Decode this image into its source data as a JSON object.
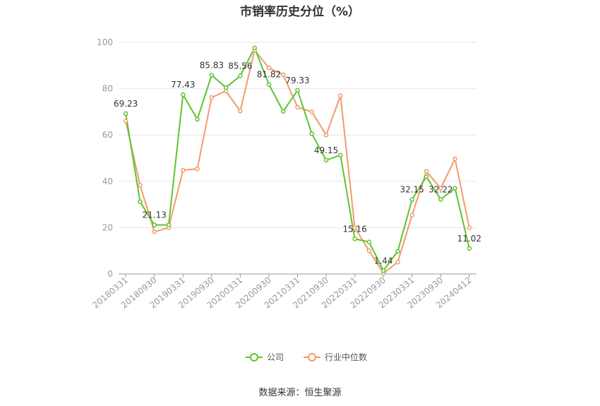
{
  "chart_data": {
    "type": "line",
    "title": "市销率历史分位（%）",
    "source": "数据来源：恒生聚源",
    "ylim": [
      0,
      100
    ],
    "yticks": [
      0,
      20,
      40,
      60,
      80,
      100
    ],
    "grid": true,
    "legend_position": "bottom",
    "xtick_labels": [
      "20180331",
      "20180930",
      "20190331",
      "20190930",
      "20200331",
      "20200930",
      "20210331",
      "20210930",
      "20220331",
      "20220930",
      "20230331",
      "20230930",
      "20240412"
    ],
    "x": [
      "20180331",
      "20180630",
      "20180930",
      "20181231",
      "20190331",
      "20190630",
      "20190930",
      "20191231",
      "20200331",
      "20200630",
      "20200930",
      "20201231",
      "20210331",
      "20210630",
      "20210930",
      "20211231",
      "20220331",
      "20220630",
      "20220930",
      "20221231",
      "20230331",
      "20230630",
      "20230930",
      "20231231",
      "20240412"
    ],
    "series": [
      {
        "name": "公司",
        "color": "#5ec42f",
        "values": [
          69.23,
          31.2,
          21.13,
          21.2,
          77.43,
          66.8,
          85.83,
          80.5,
          85.56,
          97.6,
          81.82,
          70.2,
          79.33,
          60.5,
          49.15,
          51.3,
          15.16,
          13.8,
          1.44,
          9.8,
          32.15,
          42.0,
          32.22,
          37.0,
          11.02
        ]
      },
      {
        "name": "行业中位数",
        "color": "#f39a6d",
        "values": [
          66.0,
          38.3,
          18.2,
          20.0,
          44.8,
          45.4,
          76.2,
          79.0,
          70.3,
          96.6,
          89.0,
          86.0,
          72.0,
          70.0,
          60.0,
          77.0,
          20.0,
          10.0,
          0.3,
          5.1,
          25.4,
          44.3,
          37.0,
          49.7,
          20.0
        ]
      }
    ],
    "data_labels": [
      {
        "series": 0,
        "index": 0,
        "text": "69.23"
      },
      {
        "series": 0,
        "index": 2,
        "text": "21.13"
      },
      {
        "series": 0,
        "index": 4,
        "text": "77.43"
      },
      {
        "series": 0,
        "index": 6,
        "text": "85.83"
      },
      {
        "series": 0,
        "index": 8,
        "text": "85.56"
      },
      {
        "series": 0,
        "index": 10,
        "text": "81.82"
      },
      {
        "series": 0,
        "index": 12,
        "text": "79.33"
      },
      {
        "series": 0,
        "index": 14,
        "text": "49.15"
      },
      {
        "series": 0,
        "index": 16,
        "text": "15.16"
      },
      {
        "series": 0,
        "index": 18,
        "text": "1.44"
      },
      {
        "series": 0,
        "index": 20,
        "text": "32.15"
      },
      {
        "series": 0,
        "index": 22,
        "text": "32.22"
      },
      {
        "series": 0,
        "index": 24,
        "text": "11.02"
      }
    ]
  }
}
